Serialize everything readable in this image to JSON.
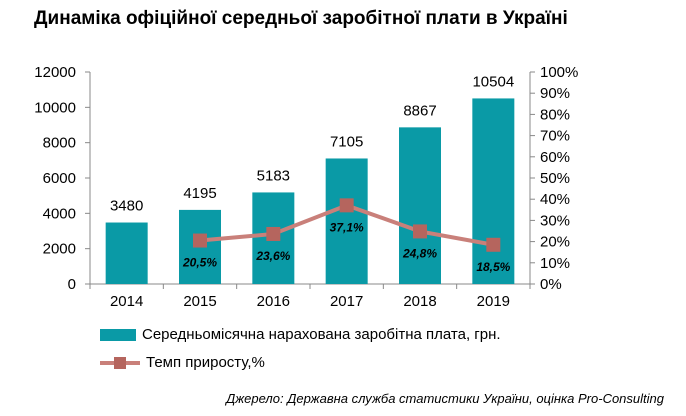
{
  "title": "Динаміка офіційної середньої заробітної плати в Україні",
  "source": "Джерело: Державна служба статистики України, оцінка Pro-Consulting",
  "colors": {
    "bar": "#0a9aa6",
    "line": "#c9807a",
    "marker": "#b5655e"
  },
  "chart_data": {
    "type": "bar",
    "categories": [
      "2014",
      "2015",
      "2016",
      "2017",
      "2018",
      "2019"
    ],
    "series": [
      {
        "name": "Середньомісячна нарахована заробітна плата, грн.",
        "type": "bar",
        "axis": "left",
        "values": [
          3480,
          4195,
          5183,
          7105,
          8867,
          10504
        ],
        "labels": [
          "3480",
          "4195",
          "5183",
          "7105",
          "8867",
          "10504"
        ]
      },
      {
        "name": "Темп приросту,%",
        "type": "line",
        "axis": "right",
        "values": [
          null,
          20.5,
          23.6,
          37.1,
          24.8,
          18.5
        ],
        "labels": [
          "",
          "20,5%",
          "23,6%",
          "37,1%",
          "24,8%",
          "18,5%"
        ]
      }
    ],
    "y_left": {
      "min": 0,
      "max": 12000,
      "ticks": [
        "0",
        "2000",
        "4000",
        "6000",
        "8000",
        "10000",
        "12000"
      ]
    },
    "y_right": {
      "min": 0,
      "max": 100,
      "ticks": [
        "0%",
        "10%",
        "20%",
        "30%",
        "40%",
        "50%",
        "60%",
        "70%",
        "80%",
        "90%",
        "100%"
      ]
    },
    "legend_position": "bottom-left",
    "grid": false
  }
}
